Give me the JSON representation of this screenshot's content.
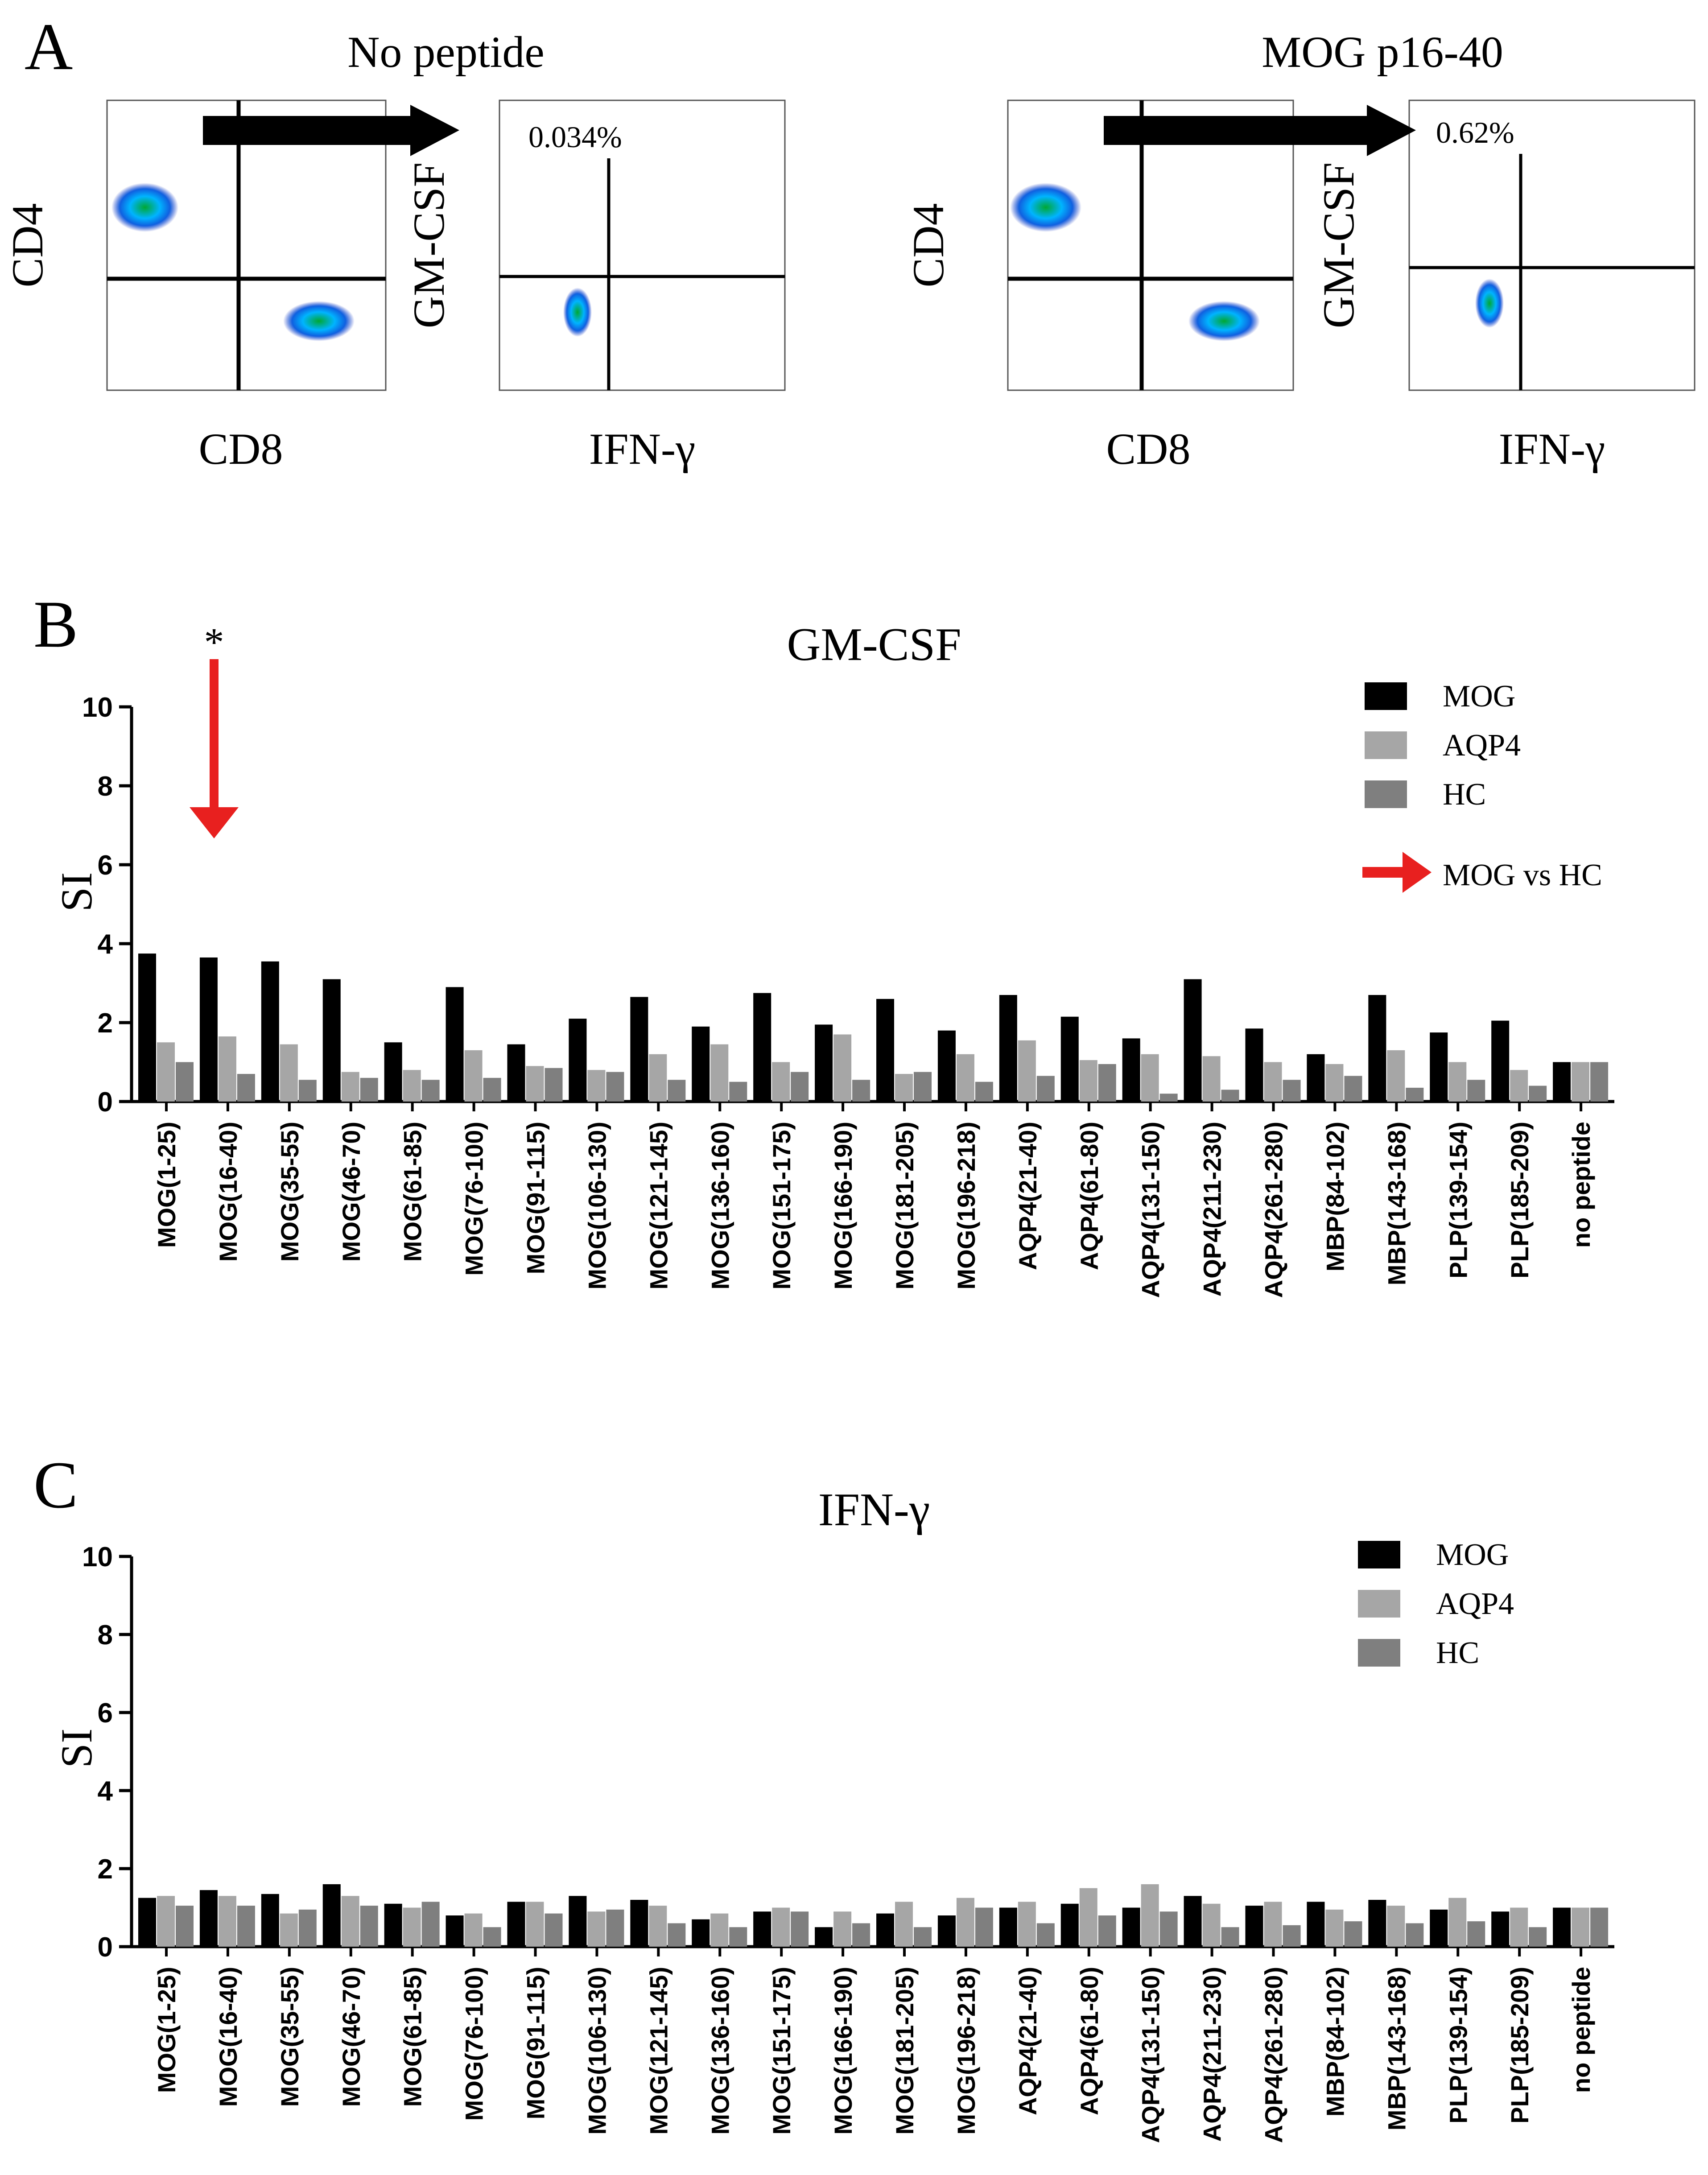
{
  "panel_labels": {
    "a": "A",
    "b": "B",
    "c": "C"
  },
  "flow": {
    "left_title": "No peptide",
    "right_title": "MOG p16-40",
    "ylabel_cd4": "CD4",
    "xlabel_cd8": "CD8",
    "ylabel_gmcsf": "GM-CSF",
    "xlabel_ifng": "IFN-γ",
    "left_percent": "0.034%",
    "right_percent": "0.62%"
  },
  "colors": {
    "mog": "#000000",
    "aqp4": "#a6a6a6",
    "hc": "#7f7f7f",
    "arrow": "#e8201f"
  },
  "annotation": {
    "star": "*",
    "arrow_label": "MOG vs HC"
  },
  "chart_data": [
    {
      "type": "bar",
      "title": "GM-CSF",
      "ylabel": "SI",
      "xlabel": "",
      "ylim": [
        0,
        10
      ],
      "yticks": [
        "0",
        "2",
        "4",
        "6",
        "8",
        "10"
      ],
      "legend_position": "top-right",
      "categories": [
        "MOG(1-25)",
        "MOG(16-40)",
        "MOG(35-55)",
        "MOG(46-70)",
        "MOG(61-85)",
        "MOG(76-100)",
        "MOG(91-115)",
        "MOG(106-130)",
        "MOG(121-145)",
        "MOG(136-160)",
        "MOG(151-175)",
        "MOG(166-190)",
        "MOG(181-205)",
        "MOG(196-218)",
        "AQP4(21-40)",
        "AQP4(61-80)",
        "AQP4(131-150)",
        "AQP4(211-230)",
        "AQP4(261-280)",
        "MBP(84-102)",
        "MBP(143-168)",
        "PLP(139-154)",
        "PLP(185-209)",
        "no peptide"
      ],
      "series": [
        {
          "name": "MOG",
          "values": [
            3.75,
            3.65,
            3.55,
            3.1,
            1.5,
            2.9,
            1.45,
            2.1,
            2.65,
            1.9,
            2.75,
            1.95,
            2.6,
            1.8,
            2.7,
            2.15,
            1.6,
            3.1,
            1.85,
            1.2,
            2.7,
            1.75,
            2.05,
            1.0
          ]
        },
        {
          "name": "AQP4",
          "values": [
            1.5,
            1.65,
            1.45,
            0.75,
            0.8,
            1.3,
            0.9,
            0.8,
            1.2,
            1.45,
            1.0,
            1.7,
            0.7,
            1.2,
            1.55,
            1.05,
            1.2,
            1.15,
            1.0,
            0.95,
            1.3,
            1.0,
            0.8,
            1.0
          ]
        },
        {
          "name": "HC",
          "values": [
            1.0,
            0.7,
            0.55,
            0.6,
            0.55,
            0.6,
            0.85,
            0.75,
            0.55,
            0.5,
            0.75,
            0.55,
            0.75,
            0.5,
            0.65,
            0.95,
            0.2,
            0.3,
            0.55,
            0.65,
            0.35,
            0.55,
            0.4,
            1.0
          ]
        }
      ]
    },
    {
      "type": "bar",
      "title": "IFN-γ",
      "ylabel": "SI",
      "xlabel": "",
      "ylim": [
        0,
        10
      ],
      "yticks": [
        "0",
        "2",
        "4",
        "6",
        "8",
        "10"
      ],
      "legend_position": "top-right",
      "categories": [
        "MOG(1-25)",
        "MOG(16-40)",
        "MOG(35-55)",
        "MOG(46-70)",
        "MOG(61-85)",
        "MOG(76-100)",
        "MOG(91-115)",
        "MOG(106-130)",
        "MOG(121-145)",
        "MOG(136-160)",
        "MOG(151-175)",
        "MOG(166-190)",
        "MOG(181-205)",
        "MOG(196-218)",
        "AQP4(21-40)",
        "AQP4(61-80)",
        "AQP4(131-150)",
        "AQP4(211-230)",
        "AQP4(261-280)",
        "MBP(84-102)",
        "MBP(143-168)",
        "PLP(139-154)",
        "PLP(185-209)",
        "no peptide"
      ],
      "series": [
        {
          "name": "MOG",
          "values": [
            1.25,
            1.45,
            1.35,
            1.6,
            1.1,
            0.8,
            1.15,
            1.3,
            1.2,
            0.7,
            0.9,
            0.5,
            0.85,
            0.8,
            1.0,
            1.1,
            1.0,
            1.3,
            1.05,
            1.15,
            1.2,
            0.95,
            0.9,
            1.0
          ]
        },
        {
          "name": "AQP4",
          "values": [
            1.3,
            1.3,
            0.85,
            1.3,
            1.0,
            0.85,
            1.15,
            0.9,
            1.05,
            0.85,
            1.0,
            0.9,
            1.15,
            1.25,
            1.15,
            1.5,
            1.6,
            1.1,
            1.15,
            0.95,
            1.05,
            1.25,
            1.0,
            1.0
          ]
        },
        {
          "name": "HC",
          "values": [
            1.05,
            1.05,
            0.95,
            1.05,
            1.15,
            0.5,
            0.85,
            0.95,
            0.6,
            0.5,
            0.9,
            0.6,
            0.5,
            1.0,
            0.6,
            0.8,
            0.9,
            0.5,
            0.55,
            0.65,
            0.6,
            0.65,
            0.5,
            1.0
          ]
        }
      ]
    }
  ]
}
